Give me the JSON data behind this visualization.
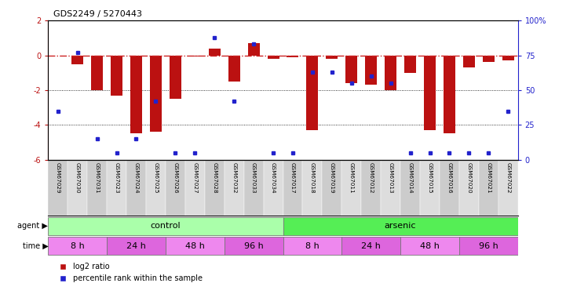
{
  "title": "GDS2249 / 5270443",
  "samples": [
    "GSM67029",
    "GSM67030",
    "GSM67031",
    "GSM67023",
    "GSM67024",
    "GSM67025",
    "GSM67026",
    "GSM67027",
    "GSM67028",
    "GSM67032",
    "GSM67033",
    "GSM67034",
    "GSM67017",
    "GSM67018",
    "GSM67019",
    "GSM67011",
    "GSM67012",
    "GSM67013",
    "GSM67014",
    "GSM67015",
    "GSM67016",
    "GSM67020",
    "GSM67021",
    "GSM67022"
  ],
  "log2_ratio": [
    0.0,
    -0.5,
    -2.0,
    -2.3,
    -4.5,
    -4.4,
    -2.5,
    -0.05,
    0.4,
    -1.5,
    0.7,
    -0.2,
    -0.1,
    -4.3,
    -0.2,
    -1.6,
    -1.7,
    -2.0,
    -1.0,
    -4.3,
    -4.5,
    -0.7,
    -0.4,
    -0.3
  ],
  "percentile": [
    35,
    77,
    15,
    5,
    15,
    42,
    5,
    5,
    88,
    42,
    83,
    5,
    5,
    63,
    63,
    55,
    60,
    55,
    5,
    5,
    5,
    5,
    5,
    35
  ],
  "ylim_left": [
    -6,
    2
  ],
  "ylim_right": [
    0,
    100
  ],
  "yticks_left": [
    -6,
    -4,
    -2,
    0,
    2
  ],
  "yticks_right": [
    0,
    25,
    50,
    75,
    100
  ],
  "bar_color": "#bb1111",
  "dot_color": "#2222cc",
  "zeroline_color": "#cc2222",
  "grid_color": "#333333",
  "bg_color": "#ffffff",
  "agent_groups": [
    {
      "label": "control",
      "start": 0,
      "end": 12,
      "color": "#aaffaa"
    },
    {
      "label": "arsenic",
      "start": 12,
      "end": 24,
      "color": "#55ee55"
    }
  ],
  "time_groups": [
    {
      "label": "8 h",
      "start": 0,
      "end": 3,
      "color": "#ee88ee"
    },
    {
      "label": "24 h",
      "start": 3,
      "end": 6,
      "color": "#dd66dd"
    },
    {
      "label": "48 h",
      "start": 6,
      "end": 9,
      "color": "#ee88ee"
    },
    {
      "label": "96 h",
      "start": 9,
      "end": 12,
      "color": "#dd66dd"
    },
    {
      "label": "8 h",
      "start": 12,
      "end": 15,
      "color": "#ee88ee"
    },
    {
      "label": "24 h",
      "start": 15,
      "end": 18,
      "color": "#dd66dd"
    },
    {
      "label": "48 h",
      "start": 18,
      "end": 21,
      "color": "#ee88ee"
    },
    {
      "label": "96 h",
      "start": 21,
      "end": 24,
      "color": "#dd66dd"
    }
  ],
  "legend_items": [
    {
      "label": "log2 ratio",
      "color": "#bb1111"
    },
    {
      "label": "percentile rank within the sample",
      "color": "#2222cc"
    }
  ]
}
